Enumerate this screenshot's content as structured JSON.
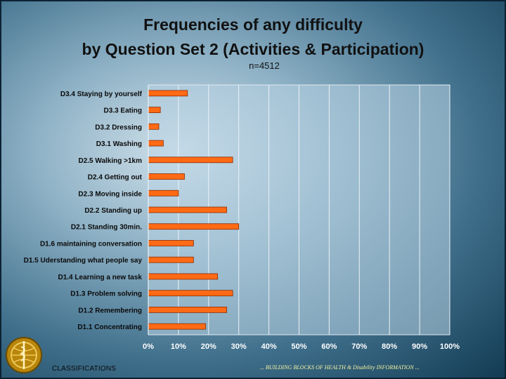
{
  "slide": {
    "title_line1": "Frequencies of any difficulty",
    "title_line2": "by Question Set 2 (Activities & Participation)",
    "subtitle": "n=4512",
    "footer_left": "CLASSIFICATIONS",
    "footer_right": "... BUILDING BLOCKS OF HEALTH & Disability INFORMATION ...",
    "emblem_icon": "who-emblem-icon"
  },
  "colors": {
    "bar_fill": "#ff6a14",
    "bar_edge": "#8a2c00",
    "plot_bg": "#b9d4e3",
    "gridline": "#eaf2f7"
  },
  "chart_data": {
    "type": "bar",
    "orientation": "horizontal",
    "title": "",
    "xlabel": "",
    "ylabel": "",
    "xlim": [
      0,
      100
    ],
    "grid": true,
    "x_tick_labels": [
      "0%",
      "10%",
      "20%",
      "30%",
      "40%",
      "50%",
      "60%",
      "70%",
      "80%",
      "90%",
      "100%"
    ],
    "categories": [
      "D3.4 Staying by yourself",
      "D3.3 Eating",
      "D3.2 Dressing",
      "D3.1 Washing",
      "D2.5 Walking >1km",
      "D2.4 Getting out",
      "D2.3 Moving inside",
      "D2.2 Standing up",
      "D2.1 Standing 30min.",
      "D1.6 maintaining conversation",
      "D1.5 Uderstanding what people say",
      "D1.4 Learning a new task",
      "D1.3 Problem solving",
      "D1.2 Remembering",
      "D1.1 Concentrating"
    ],
    "values": [
      13,
      4,
      3.5,
      5,
      28,
      12,
      10,
      26,
      30,
      15,
      15,
      23,
      28,
      26,
      19
    ]
  }
}
